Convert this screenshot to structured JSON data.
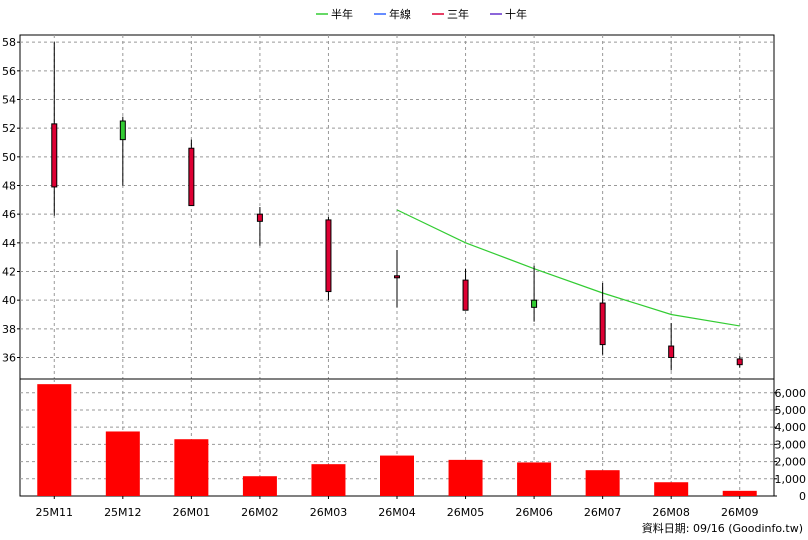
{
  "chart_data": {
    "type": "candlestick+bar",
    "categories": [
      "25M11",
      "25M12",
      "26M01",
      "26M02",
      "26M03",
      "26M04",
      "26M05",
      "26M06",
      "26M07",
      "26M08",
      "26M09"
    ],
    "legend": [
      {
        "name": "半年",
        "color": "#33cc33"
      },
      {
        "name": "年線",
        "color": "#3366ff"
      },
      {
        "name": "三年",
        "color": "#dd0033"
      },
      {
        "name": "十年",
        "color": "#6633cc"
      }
    ],
    "price": {
      "ylim": [
        34.5,
        58.5
      ],
      "ticks": [
        36,
        38,
        40,
        42,
        44,
        46,
        48,
        50,
        52,
        54,
        56,
        58
      ],
      "candles": [
        {
          "open": 52.3,
          "high": 58.0,
          "low": 45.9,
          "close": 47.9
        },
        {
          "open": 51.2,
          "high": 52.8,
          "low": 48.0,
          "close": 52.5
        },
        {
          "open": 50.6,
          "high": 51.2,
          "low": 46.6,
          "close": 46.6
        },
        {
          "open": 46.0,
          "high": 46.5,
          "low": 43.8,
          "close": 45.5
        },
        {
          "open": 45.6,
          "high": 45.8,
          "low": 40.0,
          "close": 40.6
        },
        {
          "open": 41.7,
          "high": 43.5,
          "low": 39.5,
          "close": 41.6
        },
        {
          "open": 41.4,
          "high": 42.2,
          "low": 39.3,
          "close": 39.3
        },
        {
          "open": 39.5,
          "high": 42.4,
          "low": 38.5,
          "close": 40.0
        },
        {
          "open": 39.8,
          "high": 41.2,
          "low": 36.2,
          "close": 36.9
        },
        {
          "open": 36.8,
          "high": 38.4,
          "low": 35.1,
          "close": 36.0
        },
        {
          "open": 35.9,
          "high": 36.1,
          "low": 35.3,
          "close": 35.5
        }
      ],
      "half_year_line": [
        null,
        null,
        null,
        null,
        null,
        46.3,
        44.0,
        42.2,
        40.5,
        39.0,
        38.2
      ],
      "up_color": "#33cc33",
      "down_color": "#dd0033"
    },
    "volume": {
      "ylim": [
        0,
        6800
      ],
      "ticks": [
        0,
        1000,
        2000,
        3000,
        4000,
        5000,
        6000
      ],
      "tick_labels": [
        "0",
        "1,000",
        "2,000",
        "3,000",
        "4,000",
        "5,000",
        "6,000"
      ],
      "values": [
        6500,
        3750,
        3300,
        1150,
        1850,
        2350,
        2100,
        1950,
        1500,
        800,
        300
      ],
      "color": "#ff0000"
    },
    "footer": "資料日期: 09/16  (Goodinfo.tw)"
  }
}
